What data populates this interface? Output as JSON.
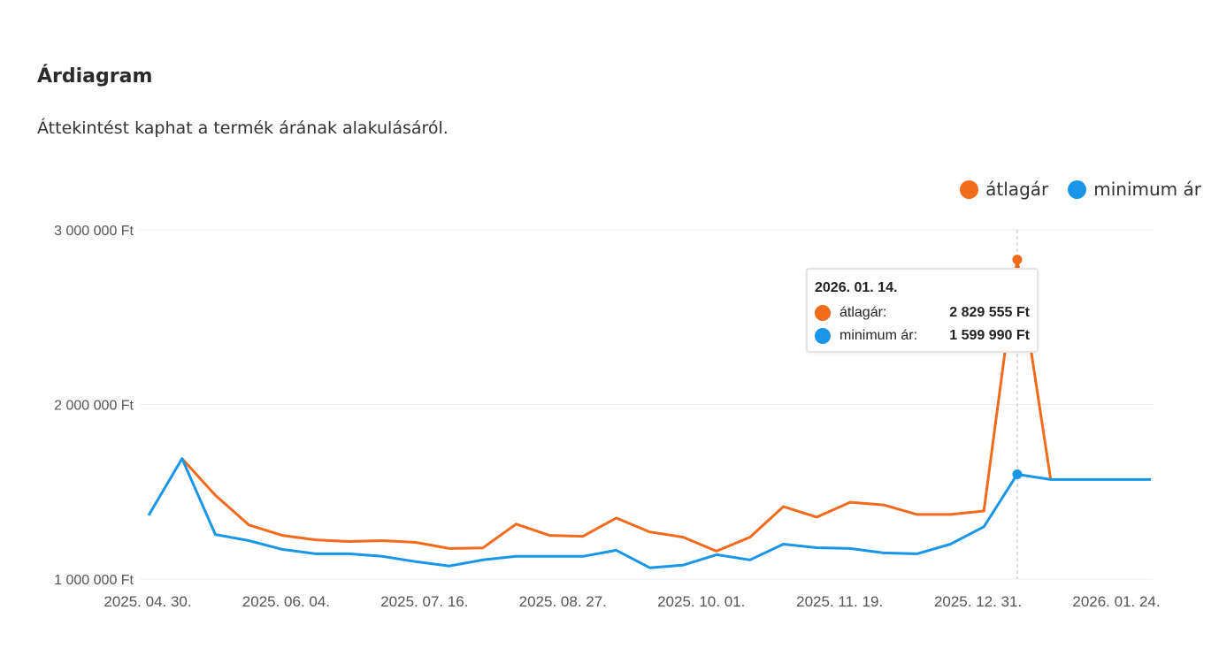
{
  "header": {
    "title": "Árdiagram",
    "subtitle": "Áttekintést kaphat a termék árának alakulásáról."
  },
  "legend": [
    {
      "label": "átlagár",
      "color": "#f26a1b"
    },
    {
      "label": "minimum ár",
      "color": "#1a96e8"
    }
  ],
  "tooltip": {
    "date": "2026. 01. 14.",
    "rows": [
      {
        "label": "átlagár:",
        "value": "2 829 555 Ft",
        "color": "#f26a1b"
      },
      {
        "label": "minimum ár:",
        "value": "1 599 990 Ft",
        "color": "#1a96e8"
      }
    ]
  },
  "chart_data": {
    "type": "line",
    "title": "",
    "xlabel": "",
    "ylabel": "",
    "ylim": [
      1000000,
      3000000
    ],
    "yticks": [
      {
        "value": 1000000,
        "label": "1 000 000 Ft"
      },
      {
        "value": 2000000,
        "label": "2 000 000 Ft"
      },
      {
        "value": 3000000,
        "label": "3 000 000 Ft"
      }
    ],
    "xticks": [
      "2025. 04. 30.",
      "2025. 06. 04.",
      "2025. 07. 16.",
      "2025. 08. 27.",
      "2025. 10. 01.",
      "2025. 11. 19.",
      "2025. 12. 31.",
      "2026. 01. 24."
    ],
    "grid": true,
    "legend_position": "top-right",
    "highlight_index": 26,
    "series": [
      {
        "name": "átlagár",
        "color": "#f26a1b",
        "values": [
          null,
          1690000,
          1480000,
          1310000,
          1250000,
          1225000,
          1215000,
          1220000,
          1210000,
          1175000,
          1178000,
          1315000,
          1250000,
          1245000,
          1350000,
          1270000,
          1240000,
          1160000,
          1240000,
          1415000,
          1355000,
          1440000,
          1425000,
          1370000,
          1370000,
          1390000,
          2829555,
          1570000,
          null,
          null,
          null
        ]
      },
      {
        "name": "minimum ár",
        "color": "#1a96e8",
        "values": [
          1365000,
          1690000,
          1255000,
          1220000,
          1170000,
          1145000,
          1145000,
          1130000,
          1100000,
          1075000,
          1110000,
          1130000,
          1130000,
          1130000,
          1165000,
          1065000,
          1080000,
          1140000,
          1110000,
          1200000,
          1180000,
          1175000,
          1150000,
          1145000,
          1200000,
          1300000,
          1599990,
          1570000,
          1570000,
          1570000,
          1570000
        ]
      }
    ]
  }
}
